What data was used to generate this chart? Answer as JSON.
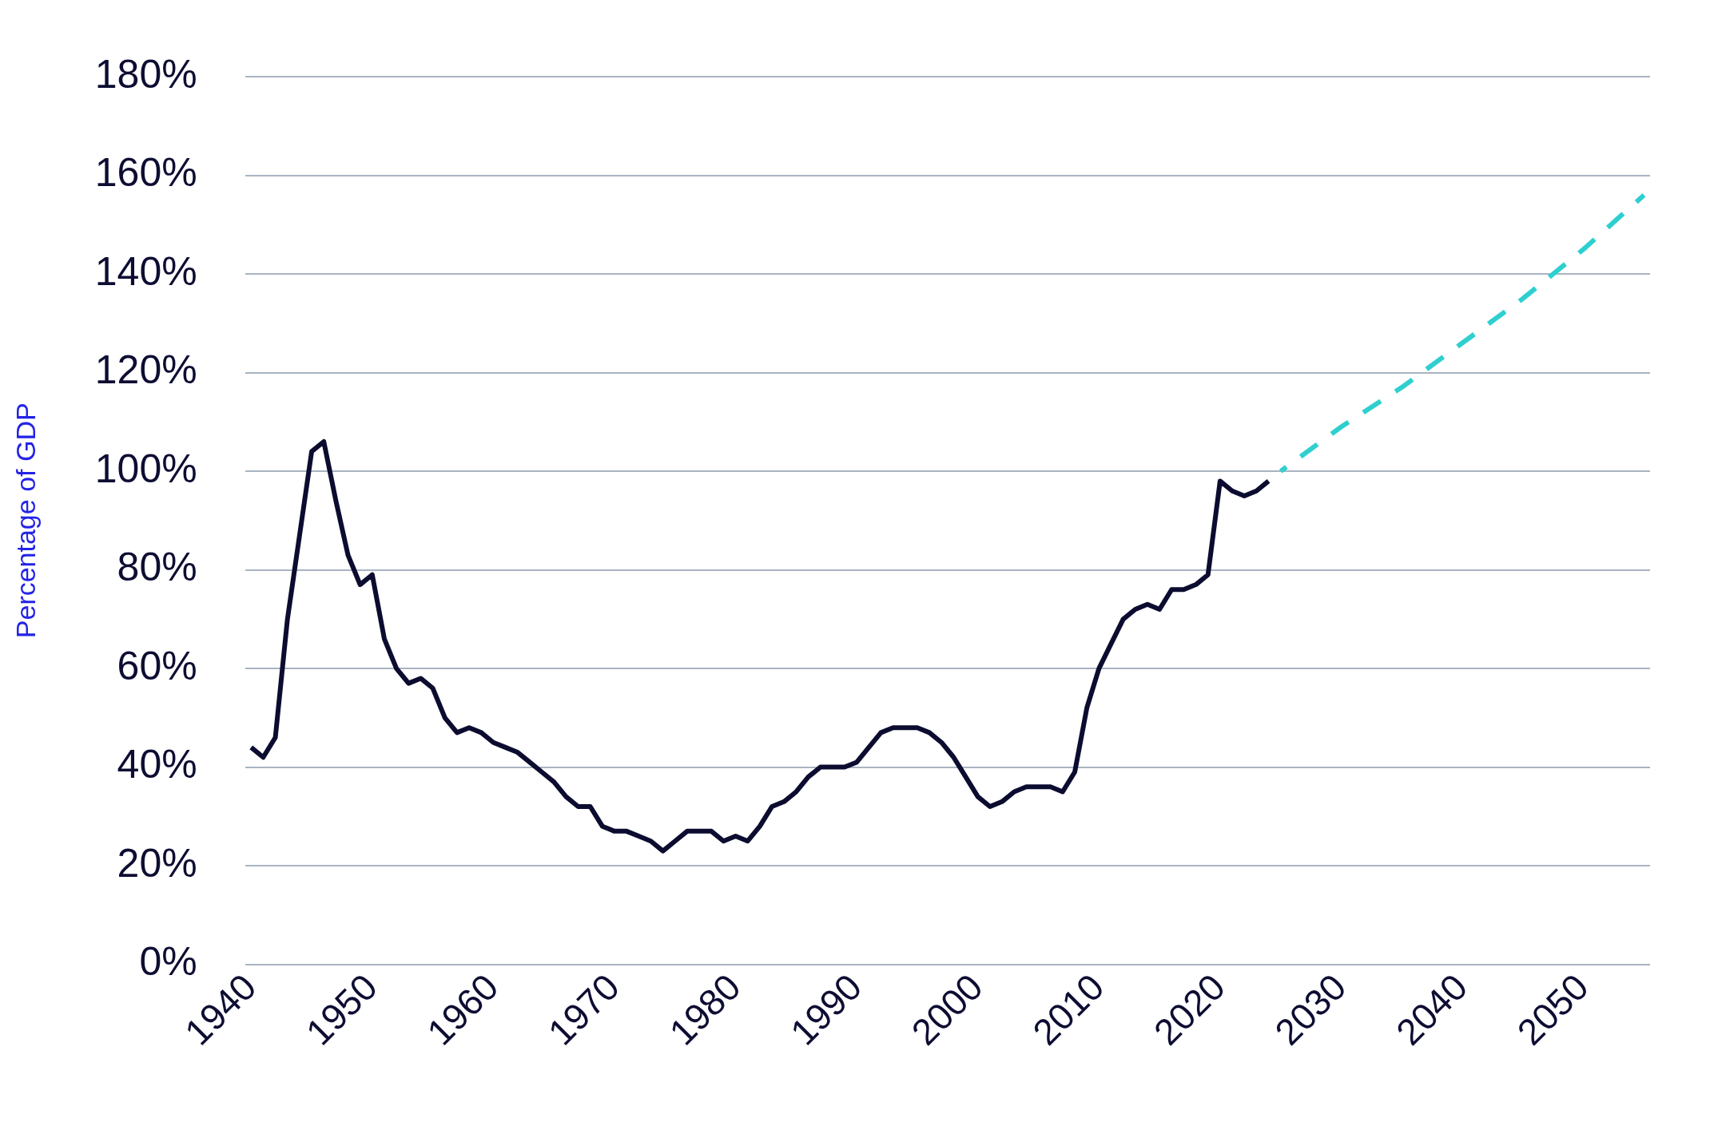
{
  "chart_data": {
    "type": "line",
    "ylabel": "Percentage of GDP",
    "xlim": [
      1939.5,
      2055.5
    ],
    "xticks": [
      1940,
      1950,
      1960,
      1970,
      1980,
      1990,
      2000,
      2010,
      2020,
      2030,
      2040,
      2050
    ],
    "ylim": [
      0,
      180
    ],
    "yticks": [
      {
        "value": 0,
        "label": "0%"
      },
      {
        "value": 20,
        "label": "20%"
      },
      {
        "value": 40,
        "label": "40%"
      },
      {
        "value": 60,
        "label": "60%"
      },
      {
        "value": 80,
        "label": "80%"
      },
      {
        "value": 100,
        "label": "100%"
      },
      {
        "value": 120,
        "label": "120%"
      },
      {
        "value": 140,
        "label": "140%"
      },
      {
        "value": 160,
        "label": "160%"
      },
      {
        "value": 180,
        "label": "180%"
      }
    ],
    "grid": "y",
    "legend": false,
    "marker": "none",
    "series": [
      {
        "color": "#0c0c30",
        "line_style": "solid",
        "x": [
          1940,
          1941,
          1942,
          1943,
          1944,
          1945,
          1946,
          1947,
          1948,
          1949,
          1950,
          1951,
          1952,
          1953,
          1954,
          1955,
          1956,
          1957,
          1958,
          1959,
          1960,
          1961,
          1962,
          1963,
          1964,
          1965,
          1966,
          1967,
          1968,
          1969,
          1970,
          1971,
          1972,
          1973,
          1974,
          1975,
          1976,
          1977,
          1978,
          1979,
          1980,
          1981,
          1982,
          1983,
          1984,
          1985,
          1986,
          1987,
          1988,
          1989,
          1990,
          1991,
          1992,
          1993,
          1994,
          1995,
          1996,
          1997,
          1998,
          1999,
          2000,
          2001,
          2002,
          2003,
          2004,
          2005,
          2006,
          2007,
          2008,
          2009,
          2010,
          2011,
          2012,
          2013,
          2014,
          2015,
          2016,
          2017,
          2018,
          2019,
          2020,
          2021,
          2022,
          2023,
          2024
        ],
        "values": [
          44,
          42,
          46,
          70,
          87,
          104,
          106,
          94,
          83,
          77,
          79,
          66,
          60,
          57,
          58,
          56,
          50,
          47,
          48,
          47,
          45,
          44,
          43,
          41,
          39,
          37,
          34,
          32,
          32,
          28,
          27,
          27,
          26,
          25,
          23,
          25,
          27,
          27,
          27,
          25,
          26,
          25,
          28,
          32,
          33,
          35,
          38,
          40,
          40,
          40,
          41,
          44,
          47,
          48,
          48,
          48,
          47,
          45,
          42,
          38,
          34,
          32,
          33,
          35,
          36,
          36,
          36,
          35,
          39,
          52,
          60,
          65,
          70,
          72,
          73,
          72,
          76,
          76,
          77,
          79,
          98,
          96,
          95,
          96,
          98
        ]
      },
      {
        "color": "#2ecfcf",
        "line_style": "dashed",
        "x": [
          2025,
          2030,
          2035,
          2040,
          2045,
          2050,
          2055
        ],
        "values": [
          100,
          109,
          117,
          126,
          135,
          145,
          156
        ]
      }
    ]
  }
}
